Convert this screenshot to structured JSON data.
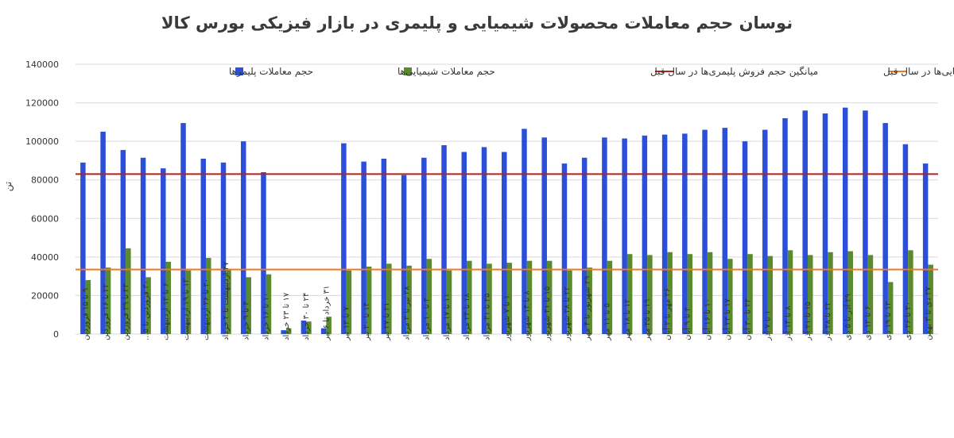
{
  "chart_data": {
    "type": "bar",
    "title": "نوسان حجم معاملات محصولات شیمیایی و پلیمری در بازار فیزیکی بورس کالا",
    "ylabel": "تن",
    "xlabel": "",
    "ylim": [
      0,
      140000
    ],
    "yticks": [
      0,
      20000,
      40000,
      60000,
      80000,
      100000,
      120000,
      140000
    ],
    "ytick_labels": [
      "0",
      "20000",
      "40000",
      "60000",
      "80000",
      "100000",
      "120000",
      "140000"
    ],
    "grid": true,
    "legend_position": "top",
    "categories": [
      "۹ تا ۱۵ فروردین",
      "۲۲ تا ۱۶ فروردین",
      "۲۳ تا ۲۹ فروردین",
      "۳۰ فروردین تا ۵...",
      "۶ تا ۱۲ اردیبهشت",
      "۱۳ تا ۱۹ اردیبهشت",
      "۲۰ تا ۲۶ اردیبهشت",
      "۲۷ اردیبهشت تا ۲ خرداد",
      "۳ تا ۹ خرداد",
      "۱۰ تا ۱۶ خرداد",
      "۱۷ تا ۲۳ خرداد",
      "۲۴ تا ۳۰ خرداد",
      "۳۱ خرداد تا ۶ تیر",
      "۷ تا ۱۳ تیر",
      "۱۴ تا ۲۰ تیر",
      "۲۱ تا ۲۷ تیر",
      "۲۸ تیر تا ۳ مرداد",
      "۴ تا ۱۰ مرداد",
      "۱۱ تا ۱۷ مرداد",
      "۱۸ تا ۲۴ مرداد",
      "۲۵ تا ۳۱ مرداد",
      "۱ تا ۷ شهریور",
      "۸ تا ۱۴ شهریور",
      "۱۵ تا ۲۱ شهریور",
      "۲۲ تا ۲۸ شهریور",
      "۲۹ شهریور تا ۴ مهر",
      "۵ تا ۱۱ مهر",
      "۱۲ تا ۱۸ مهر",
      "۱۹ تا ۲۵ مهر",
      "۲۶ مهر تا ۲ آبان",
      "۳ تا ۹ آبان",
      "۱۰ تا ۱۶ آبان",
      "۱۷ تا ۲۳ آبان",
      "۲۴ تا ۳۰ آبان",
      "۱ تا ۷ آذر",
      "۸ تا ۱۴ آذر",
      "۱۵ تا ۲۱ آذر",
      "۲۲ تا ۲۸ آذر",
      "۲۹ آذر تا ۵ دی",
      "۶ تا ۱۲ دی",
      "۱۳ تا ۱۹ دی",
      "۲۰ تا ۲۶ دی",
      "۲۷ دی تا ۳ بهمن"
    ],
    "series": [
      {
        "name": "حجم معاملات پلیمرها",
        "color": "#2b4fd9",
        "values": [
          89000,
          105000,
          95500,
          91500,
          86000,
          109500,
          91000,
          89000,
          100000,
          84000,
          2000,
          7000,
          3000,
          99000,
          89500,
          91000,
          82500,
          91500,
          98000,
          94500,
          97000,
          94500,
          106500,
          102000,
          88500,
          91500,
          102000,
          101500,
          103000,
          103500,
          104000,
          106000,
          107000,
          100000,
          106000,
          112000,
          116000,
          114500,
          117500,
          116000,
          109500,
          98500,
          88500
        ]
      },
      {
        "name": "حجم معاملات شیمیایی‌ها",
        "color": "#5a8a2e",
        "values": [
          28000,
          34500,
          44500,
          29500,
          37500,
          33000,
          39500,
          33500,
          29500,
          31000,
          3000,
          6500,
          9000,
          33000,
          35000,
          36500,
          35500,
          39000,
          33000,
          38000,
          36500,
          37000,
          38000,
          38000,
          33000,
          34500,
          38000,
          41500,
          41000,
          42500,
          41500,
          42500,
          39000,
          41500,
          40500,
          43500,
          41000,
          42500,
          43000,
          41000,
          27000,
          43500,
          36000
        ]
      }
    ],
    "reference_lines": [
      {
        "name": "میانگین حجم فروش پلیمری‌ها در سال قبل",
        "value": 83000,
        "color": "#b52020"
      },
      {
        "name": "میانگین حجم فروش شیمیایی‌ها در سال قبل",
        "value": 33500,
        "color": "#f07820"
      }
    ]
  }
}
